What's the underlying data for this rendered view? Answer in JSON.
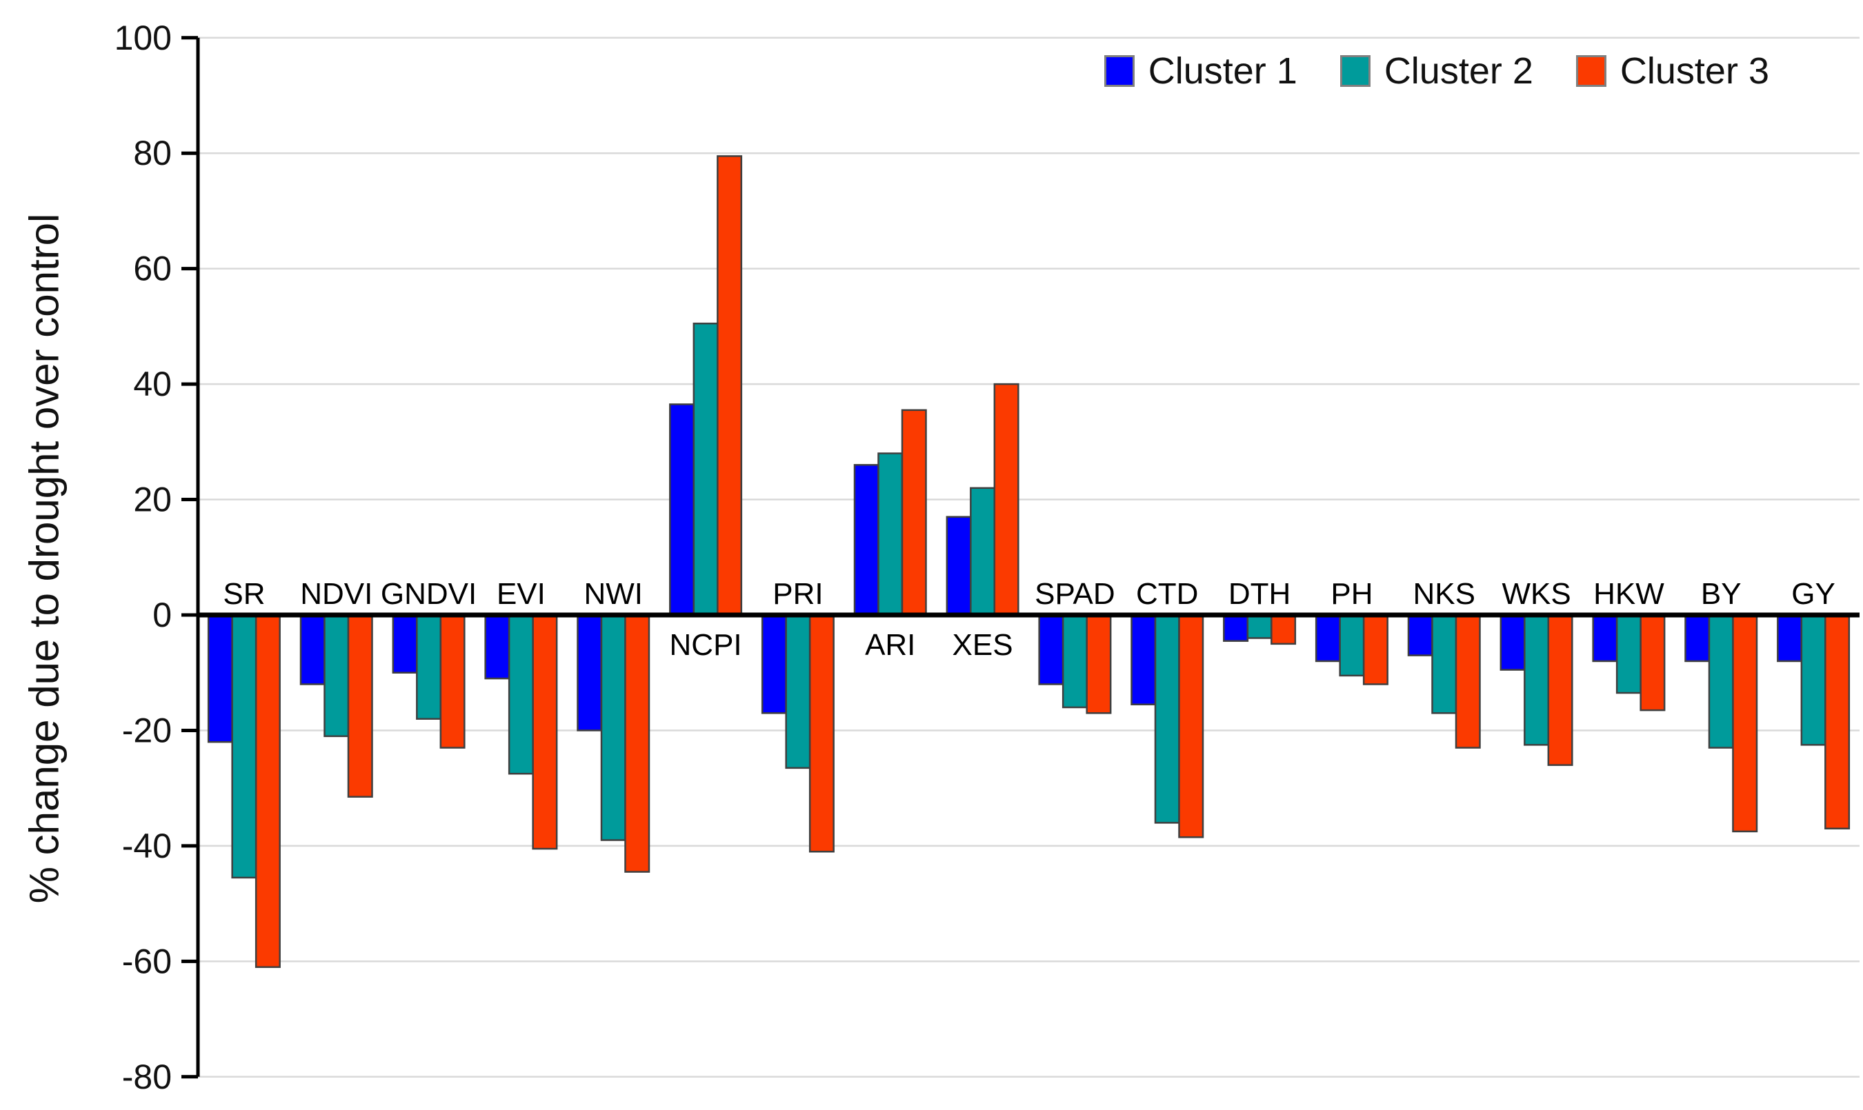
{
  "chart_data": {
    "type": "bar",
    "title": "",
    "xlabel": "",
    "ylabel": "% change due to drought over control",
    "ylim": [
      -80,
      100
    ],
    "ytick_step": 20,
    "grid": true,
    "legend_position": "top-right",
    "categories": [
      "SR",
      "NDVI",
      "GNDVI",
      "EVI",
      "NWI",
      "NCPI",
      "PRI",
      "ARI",
      "XES",
      "SPAD",
      "CTD",
      "DTH",
      "PH",
      "NKS",
      "WKS",
      "HKW",
      "BY",
      "GY"
    ],
    "series": [
      {
        "name": "Cluster 1",
        "color": "#0000FE",
        "values": [
          -22,
          -12,
          -10,
          -11,
          -20,
          36.5,
          -17,
          26,
          17,
          -12,
          -15.5,
          -4.5,
          -8,
          -7,
          -9.5,
          -8,
          -8,
          -8
        ]
      },
      {
        "name": "Cluster 2",
        "color": "#009B9B",
        "values": [
          -45.5,
          -21,
          -18,
          -27.5,
          -39,
          50.5,
          -26.5,
          28,
          22,
          -16,
          -36,
          -4,
          -10.5,
          -17,
          -22.5,
          -13.5,
          -23,
          -22.5
        ]
      },
      {
        "name": "Cluster 3",
        "color": "#FB3A00",
        "values": [
          -61,
          -31.5,
          -23,
          -40.5,
          -44.5,
          79.5,
          -41,
          35.5,
          40,
          -17,
          -38.5,
          -5,
          -12,
          -23,
          -26,
          -16.5,
          -37.5,
          -37
        ]
      }
    ],
    "styles": {
      "background": "#FFFFFF",
      "gridline_color": "#D9D9D9",
      "axis_color": "#000000",
      "bar_outline_color": "#3F3F3F",
      "legend_swatch_border": "#7F7F7F",
      "text_color": "#111111"
    }
  }
}
